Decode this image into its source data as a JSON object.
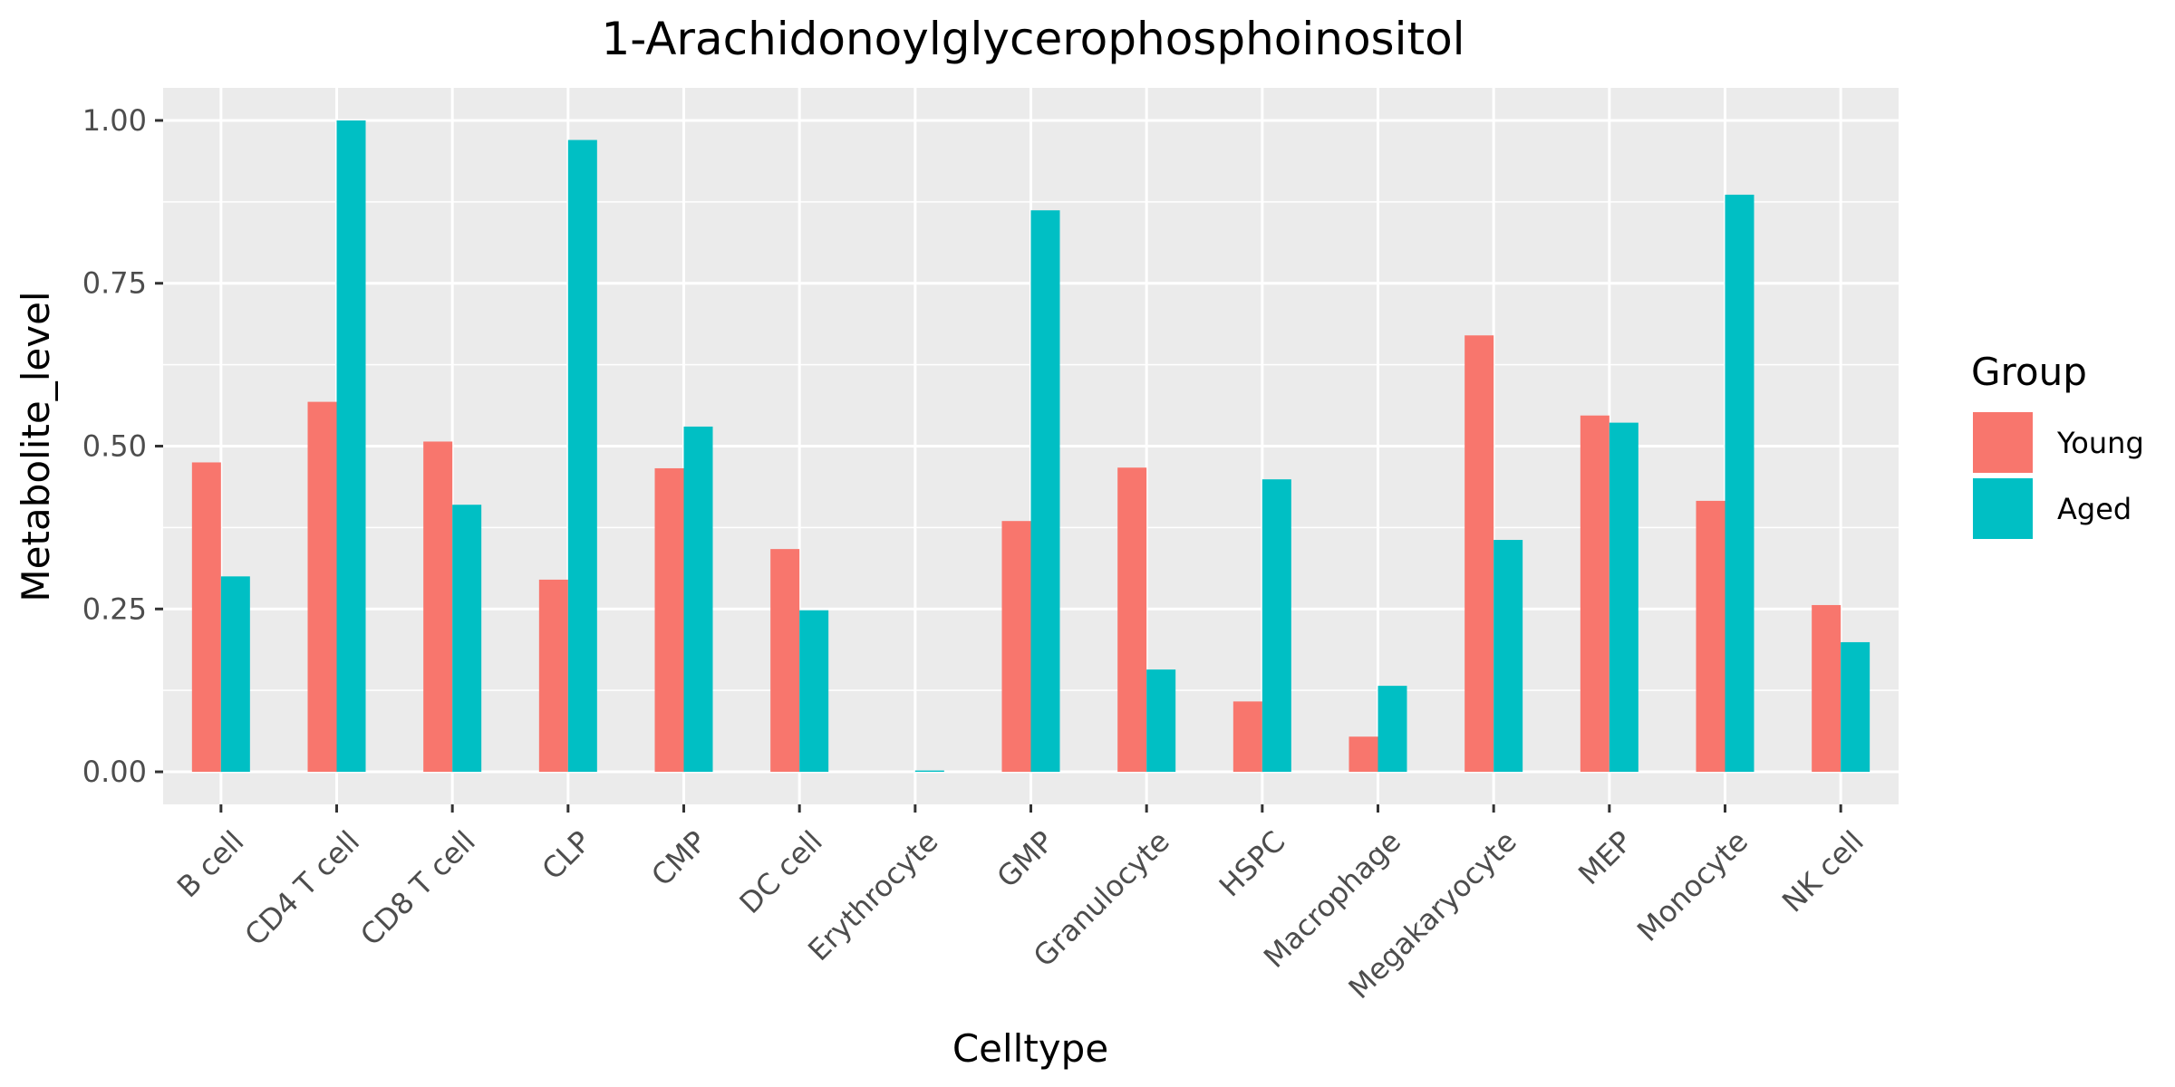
{
  "chart_data": {
    "type": "bar",
    "title": "1-Arachidonoylglycerophosphoinositol",
    "xlabel": "Celltype",
    "ylabel": "Metabolite_level",
    "ylim": [
      -0.05,
      1.05
    ],
    "yticks": [
      0.0,
      0.25,
      0.5,
      0.75,
      1.0
    ],
    "ytick_labels": [
      "0.00",
      "0.25",
      "0.50",
      "0.75",
      "1.00"
    ],
    "grid": true,
    "legend": {
      "title": "Group",
      "position": "right"
    },
    "categories": [
      "B cell",
      "CD4 T cell",
      "CD8 T cell",
      "CLP",
      "CMP",
      "DC cell",
      "Erythrocyte",
      "GMP",
      "Granulocyte",
      "HSPC",
      "Macrophage",
      "Megakaryocyte",
      "MEP",
      "Monocyte",
      "NK cell"
    ],
    "series": [
      {
        "name": "Young",
        "color": "#F8766D",
        "values": [
          0.475,
          0.568,
          0.507,
          0.295,
          0.466,
          0.342,
          0.0,
          0.385,
          0.467,
          0.108,
          0.054,
          0.67,
          0.547,
          0.416,
          0.256
        ]
      },
      {
        "name": "Aged",
        "color": "#00BFC4",
        "values": [
          0.3,
          1.0,
          0.41,
          0.97,
          0.53,
          0.248,
          0.002,
          0.862,
          0.157,
          0.449,
          0.132,
          0.356,
          0.536,
          0.886,
          0.199
        ]
      }
    ]
  }
}
